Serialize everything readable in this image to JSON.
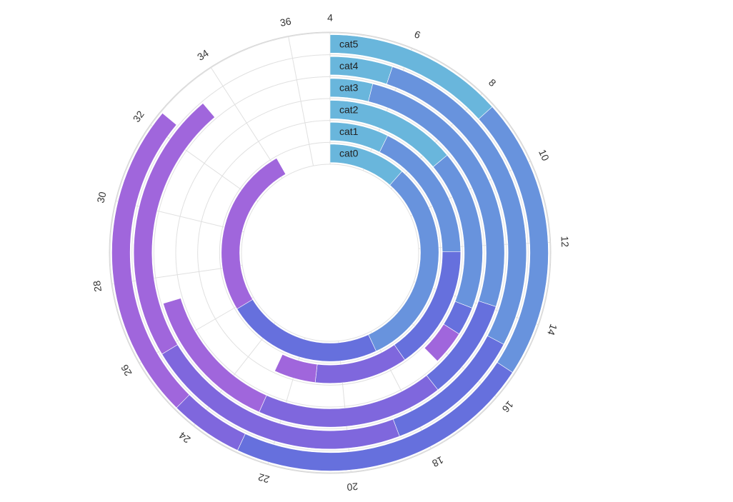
{
  "chart_data": {
    "type": "radial-bar",
    "title": "",
    "value_axis": {
      "min": 4,
      "max": 37,
      "ticks": [
        "4",
        "6",
        "8",
        "10",
        "12",
        "14",
        "16",
        "18",
        "20",
        "22",
        "24",
        "26",
        "28",
        "30",
        "32",
        "34",
        "36"
      ],
      "tick_values": [
        4,
        6,
        8,
        10,
        12,
        14,
        16,
        18,
        20,
        22,
        24,
        26,
        28,
        30,
        32,
        34,
        36
      ]
    },
    "categories": [
      "cat0",
      "cat1",
      "cat2",
      "cat3",
      "cat4",
      "cat5"
    ],
    "grid": true,
    "colors": {
      "light_blue": "#69b6dc",
      "medium_blue": "#6893dd",
      "indigo": "#6670dd",
      "violet_blue": "#7f67dd",
      "purple": "#a066dc",
      "grid": "#e0e0e0"
    },
    "series": [
      {
        "category": "cat0",
        "segments": [
          {
            "start": 4,
            "end": 7.8,
            "color": "#69b6dc"
          },
          {
            "start": 7.8,
            "end": 18.2,
            "color": "#6893dd"
          },
          {
            "start": 18.2,
            "end": 25.9,
            "color": "#6670dd"
          },
          {
            "start": 25.9,
            "end": 34.3,
            "color": "#a066dc"
          }
        ]
      },
      {
        "category": "cat1",
        "segments": [
          {
            "start": 4,
            "end": 6.4,
            "color": "#69b6dc"
          },
          {
            "start": 6.4,
            "end": 12.2,
            "color": "#6893dd"
          },
          {
            "start": 12.2,
            "end": 17.3,
            "color": "#6670dd"
          },
          {
            "start": 17.3,
            "end": 21.1,
            "color": "#7f67dd"
          },
          {
            "start": 21.1,
            "end": 22.8,
            "color": "#a066dc"
          }
        ]
      },
      {
        "category": "cat2",
        "segments": [
          {
            "start": 4,
            "end": 8.6,
            "color": "#69b6dc"
          },
          {
            "start": 8.6,
            "end": 14.2,
            "color": "#6893dd"
          },
          {
            "start": 14.2,
            "end": 15.2,
            "color": "#6670dd"
          },
          {
            "start": 15.2,
            "end": 16.4,
            "color": "#a066dc"
          }
        ]
      },
      {
        "category": "cat3",
        "segments": [
          {
            "start": 4,
            "end": 5.3,
            "color": "#69b6dc"
          },
          {
            "start": 5.3,
            "end": 13.9,
            "color": "#6893dd"
          },
          {
            "start": 13.9,
            "end": 17.0,
            "color": "#6670dd"
          },
          {
            "start": 17.0,
            "end": 22.7,
            "color": "#7f67dd"
          },
          {
            "start": 22.7,
            "end": 27.2,
            "color": "#a066dc"
          }
        ]
      },
      {
        "category": "cat4",
        "segments": [
          {
            "start": 4,
            "end": 5.7,
            "color": "#69b6dc"
          },
          {
            "start": 5.7,
            "end": 14.8,
            "color": "#6893dd"
          },
          {
            "start": 14.8,
            "end": 18.6,
            "color": "#6670dd"
          },
          {
            "start": 18.6,
            "end": 25.9,
            "color": "#7f67dd"
          },
          {
            "start": 25.9,
            "end": 33.3,
            "color": "#a066dc"
          }
        ]
      },
      {
        "category": "cat5",
        "segments": [
          {
            "start": 4,
            "end": 8.4,
            "color": "#69b6dc"
          },
          {
            "start": 8.4,
            "end": 15.3,
            "color": "#6893dd"
          },
          {
            "start": 15.3,
            "end": 22.8,
            "color": "#6670dd"
          },
          {
            "start": 22.8,
            "end": 24.6,
            "color": "#7f67dd"
          },
          {
            "start": 24.6,
            "end": 32.4,
            "color": "#a066dc"
          }
        ]
      }
    ]
  }
}
